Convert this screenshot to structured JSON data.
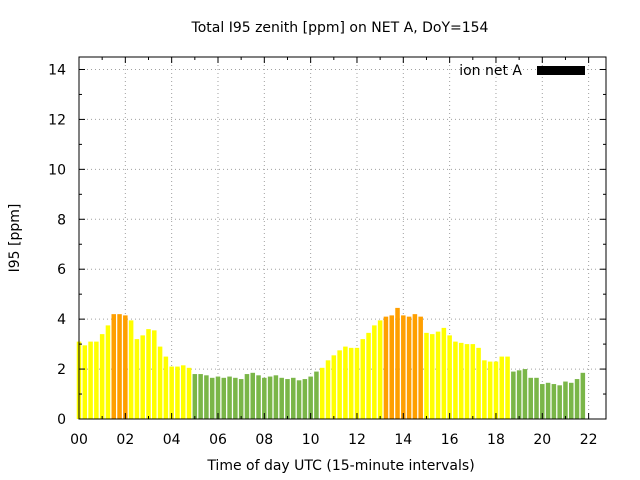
{
  "colors": {
    "low": "#7ab648",
    "mid": "#ffff00",
    "high": "#ff9f00",
    "legend": "#000000",
    "grid": "#a0a0a0",
    "axis": "#000000"
  },
  "chart_data": {
    "type": "bar",
    "title": "Total I95 zenith [ppm] on NET A, DoY=154",
    "xlabel": "Time of day UTC (15-minute intervals)",
    "ylabel": "I95 [ppm]",
    "xlim": [
      0,
      22.75
    ],
    "ylim": [
      0,
      14.5
    ],
    "x_ticks": [
      0,
      2,
      4,
      6,
      8,
      10,
      12,
      14,
      16,
      18,
      20,
      22
    ],
    "x_tick_labels": [
      "00",
      "02",
      "04",
      "06",
      "08",
      "10",
      "12",
      "14",
      "16",
      "18",
      "20",
      "22"
    ],
    "y_ticks": [
      0,
      2,
      4,
      6,
      8,
      10,
      12,
      14
    ],
    "y_tick_labels": [
      "0",
      "2",
      "4",
      "6",
      "8",
      "10",
      "12",
      "14"
    ],
    "grid": true,
    "legend": {
      "label": "ion net A",
      "position": "top-right"
    },
    "interval_hours": 0.25,
    "start_hour": 0,
    "values": [
      3.1,
      2.95,
      3.1,
      3.1,
      3.4,
      3.75,
      4.2,
      4.2,
      4.15,
      3.95,
      3.2,
      3.35,
      3.6,
      3.55,
      2.9,
      2.5,
      2.1,
      2.1,
      2.15,
      2.05,
      1.8,
      1.8,
      1.75,
      1.65,
      1.7,
      1.65,
      1.7,
      1.65,
      1.6,
      1.8,
      1.85,
      1.75,
      1.65,
      1.7,
      1.75,
      1.65,
      1.6,
      1.65,
      1.55,
      1.6,
      1.7,
      1.9,
      2.05,
      2.35,
      2.55,
      2.75,
      2.9,
      2.85,
      2.85,
      3.2,
      3.45,
      3.75,
      3.95,
      4.1,
      4.15,
      4.45,
      4.15,
      4.1,
      4.2,
      4.1,
      3.45,
      3.4,
      3.5,
      3.65,
      3.35,
      3.1,
      3.05,
      3.0,
      3.0,
      2.85,
      2.35,
      2.3,
      2.3,
      2.5,
      2.5,
      1.9,
      1.95,
      2.0,
      1.65,
      1.65,
      1.4,
      1.45,
      1.4,
      1.35,
      1.5,
      1.45,
      1.6,
      1.85
    ],
    "levels": [
      "mid",
      "mid",
      "mid",
      "mid",
      "mid",
      "mid",
      "high",
      "high",
      "high",
      "mid",
      "mid",
      "mid",
      "mid",
      "mid",
      "mid",
      "mid",
      "mid",
      "mid",
      "mid",
      "mid",
      "low",
      "low",
      "low",
      "low",
      "low",
      "low",
      "low",
      "low",
      "low",
      "low",
      "low",
      "low",
      "low",
      "low",
      "low",
      "low",
      "low",
      "low",
      "low",
      "low",
      "low",
      "low",
      "mid",
      "mid",
      "mid",
      "mid",
      "mid",
      "mid",
      "mid",
      "mid",
      "mid",
      "mid",
      "mid",
      "high",
      "high",
      "high",
      "high",
      "high",
      "high",
      "high",
      "mid",
      "mid",
      "mid",
      "mid",
      "mid",
      "mid",
      "mid",
      "mid",
      "mid",
      "mid",
      "mid",
      "mid",
      "mid",
      "mid",
      "mid",
      "low",
      "low",
      "low",
      "low",
      "low",
      "low",
      "low",
      "low",
      "low",
      "low",
      "low",
      "low",
      "low"
    ]
  }
}
